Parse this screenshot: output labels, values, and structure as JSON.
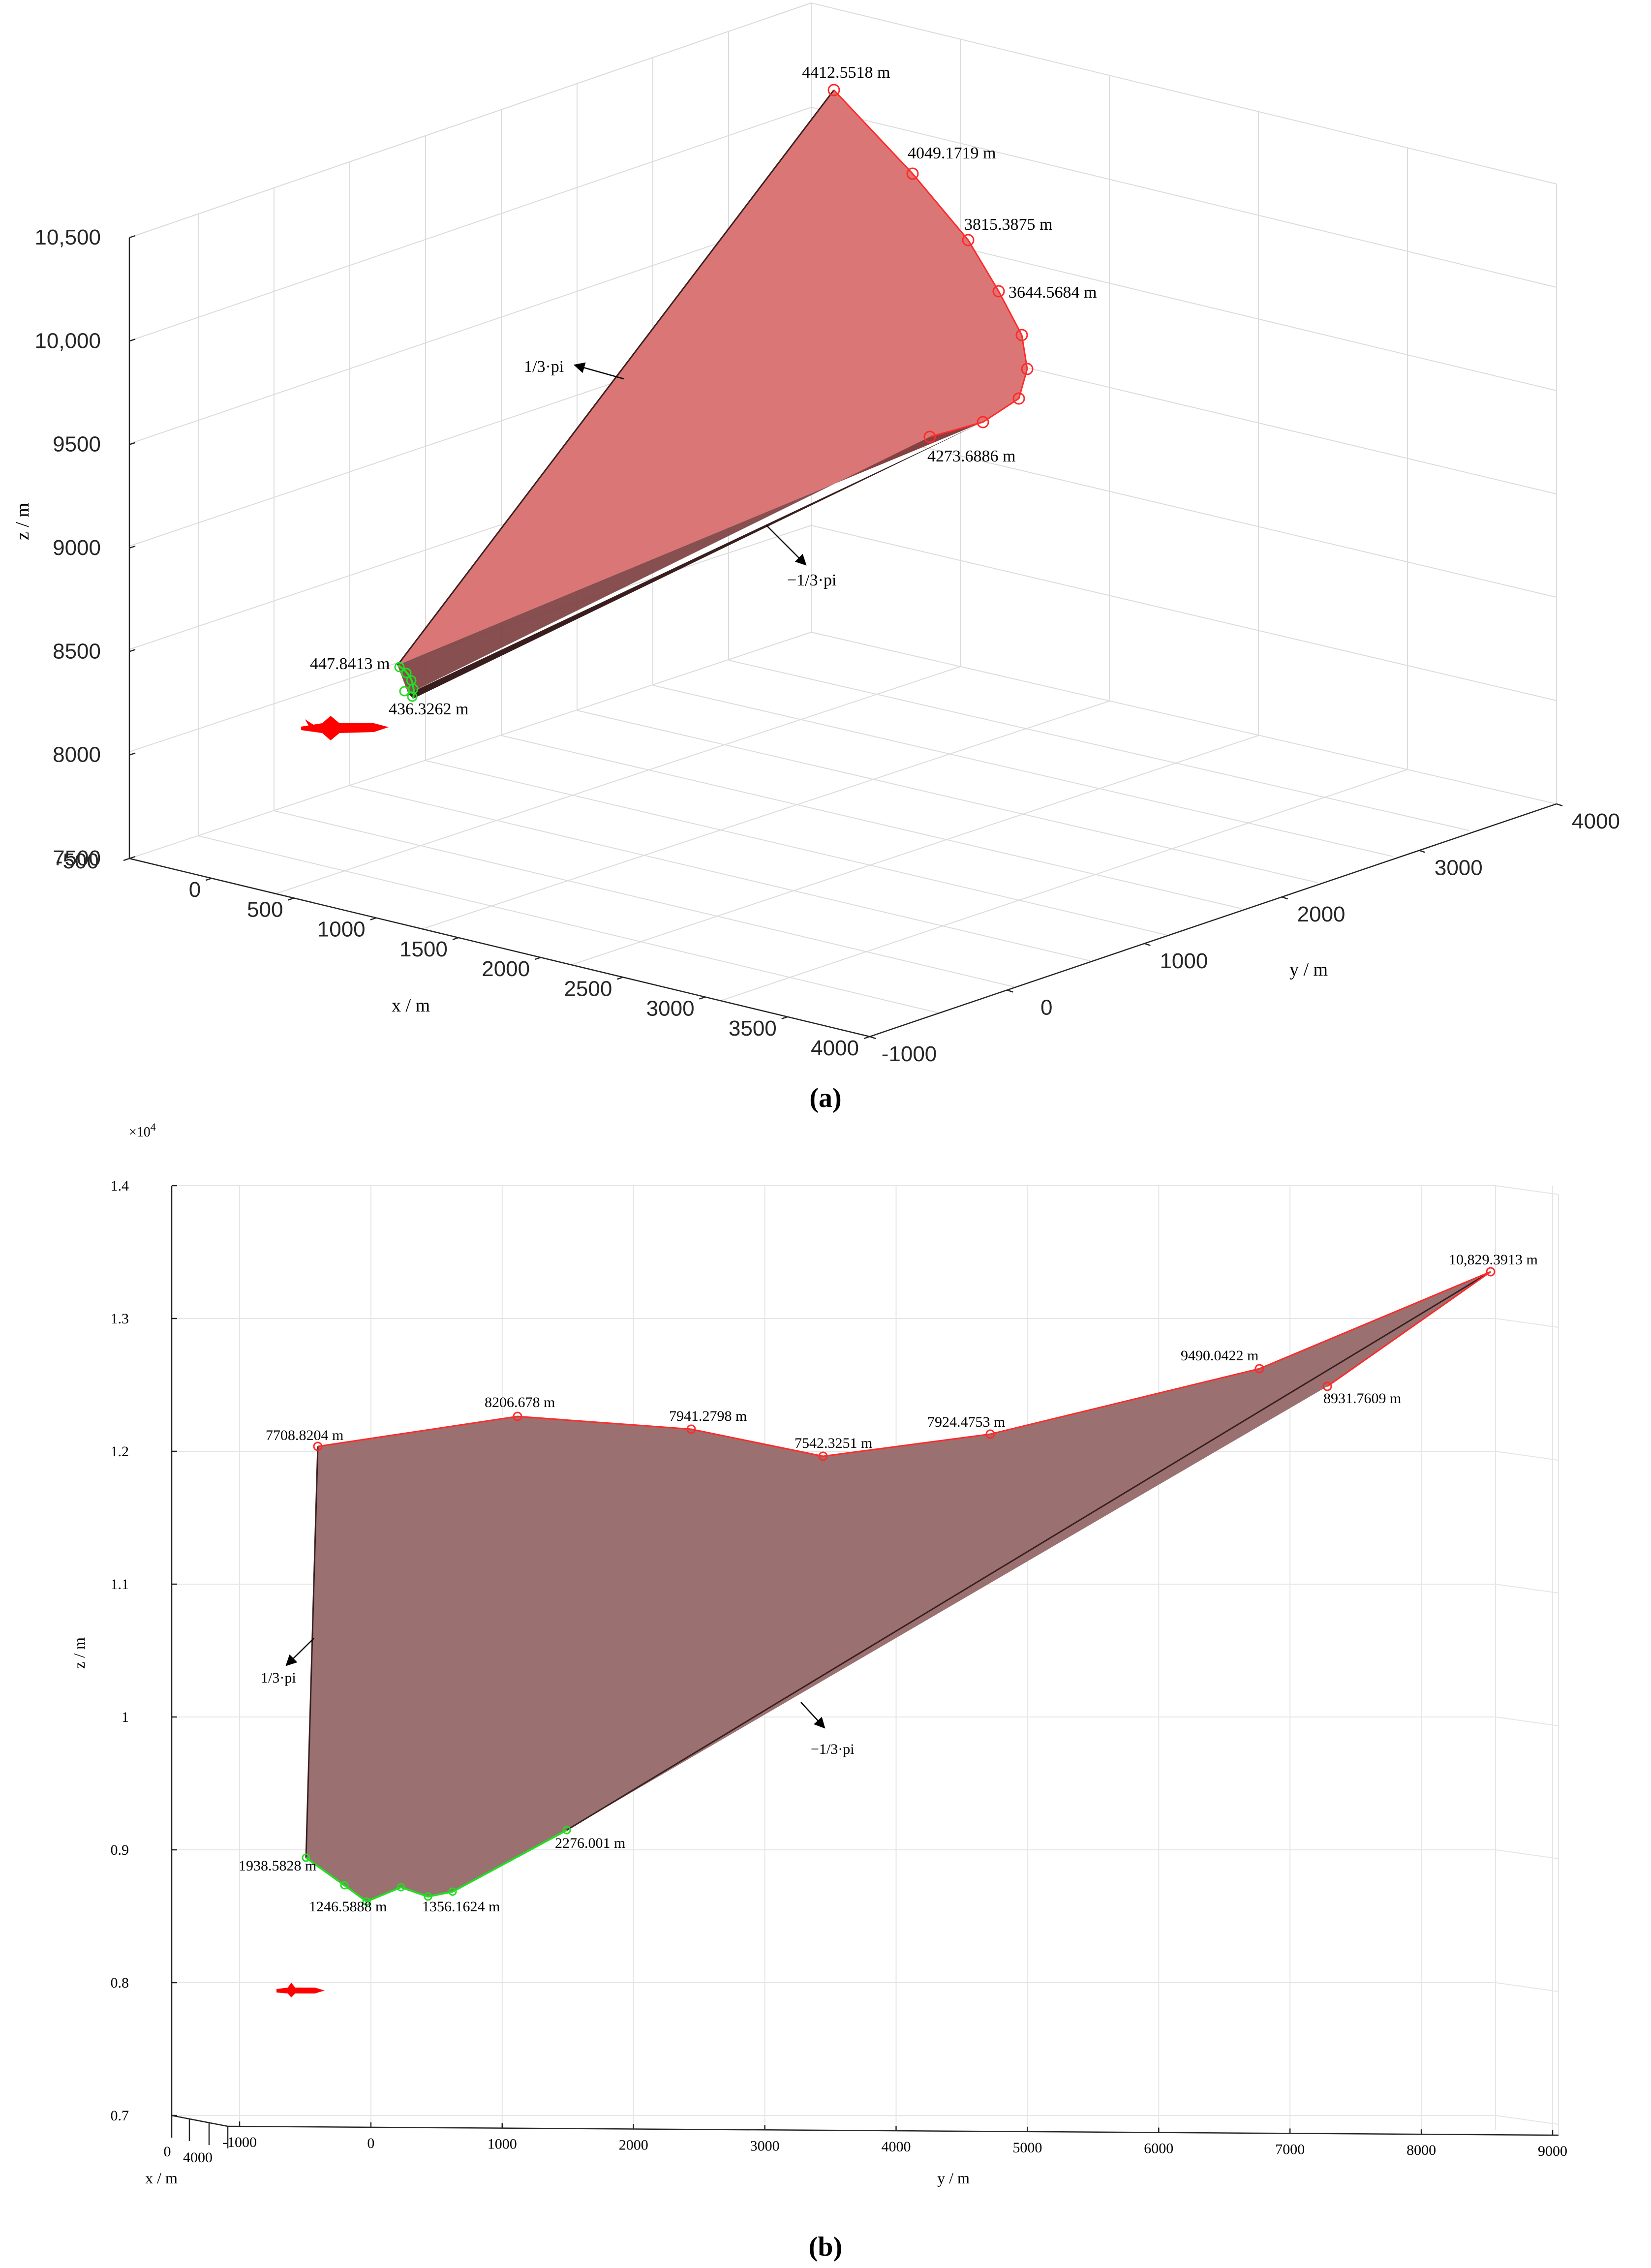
{
  "panels": [
    {
      "caption": "(a)"
    },
    {
      "caption": "(b)"
    }
  ],
  "chart_data": [
    {
      "type": "surface3d",
      "xlabel": "x / m",
      "ylabel": "y / m",
      "zlabel": "z / m",
      "xlim": [
        -500,
        4000
      ],
      "ylim": [
        -1000,
        4000
      ],
      "zlim": [
        7500,
        10500
      ],
      "xticks": [
        "-500",
        "0",
        "500",
        "1000",
        "1500",
        "2000",
        "2500",
        "3000",
        "3500",
        "4000"
      ],
      "yticks": [
        "-1000",
        "0",
        "1000",
        "2000",
        "3000",
        "4000"
      ],
      "zticks": [
        "7500",
        "8000",
        "8500",
        "9000",
        "9500",
        "10,000",
        "10,500"
      ],
      "grid": true,
      "annotations": {
        "outer_labels": [
          "4412.5518 m",
          "4049.1719 m",
          "3815.3875 m",
          "3644.5684 m",
          "4273.6886 m"
        ],
        "inner_labels": [
          "447.8413 m",
          "436.3262 m"
        ],
        "direction_labels": [
          "1/3·pi",
          "−1/3·pi"
        ]
      },
      "colors": {
        "surface": "#d96f6f",
        "outer_edge": "#ff2a2a",
        "inner_edge": "#22dd22",
        "aircraft": "#ff0000"
      }
    },
    {
      "type": "surface3d",
      "xlabel": "x / m",
      "ylabel": "y / m",
      "zlabel": "z / m",
      "zlim": [
        7000,
        14000
      ],
      "zscale_note": "×10",
      "zscale_exp": "4",
      "zticks": [
        "0.7",
        "0.8",
        "0.9",
        "1",
        "1.1",
        "1.2",
        "1.3",
        "1.4"
      ],
      "yticks": [
        "-1000",
        "0",
        "1000",
        "2000",
        "3000",
        "4000",
        "5000",
        "6000",
        "7000",
        "8000",
        "9000"
      ],
      "xticks": [
        "0",
        "4000"
      ],
      "grid": true,
      "annotations": {
        "outer_labels": [
          "7708.8204 m",
          "8206.678 m",
          "7941.2798 m",
          "7542.3251 m",
          "7924.4753 m",
          "9490.0422  m",
          "8931.7609 m",
          "10,829.3913  m"
        ],
        "inner_labels": [
          "1938.5828 m",
          "1246.5888 m",
          "1356.1624 m",
          "2276.001 m"
        ],
        "direction_labels": [
          "1/3·pi",
          "−1/3·pi"
        ]
      },
      "colors": {
        "surface": "#9a7070",
        "outer_edge": "#ff2a2a",
        "inner_edge": "#22dd22",
        "aircraft": "#ff0000"
      }
    }
  ]
}
